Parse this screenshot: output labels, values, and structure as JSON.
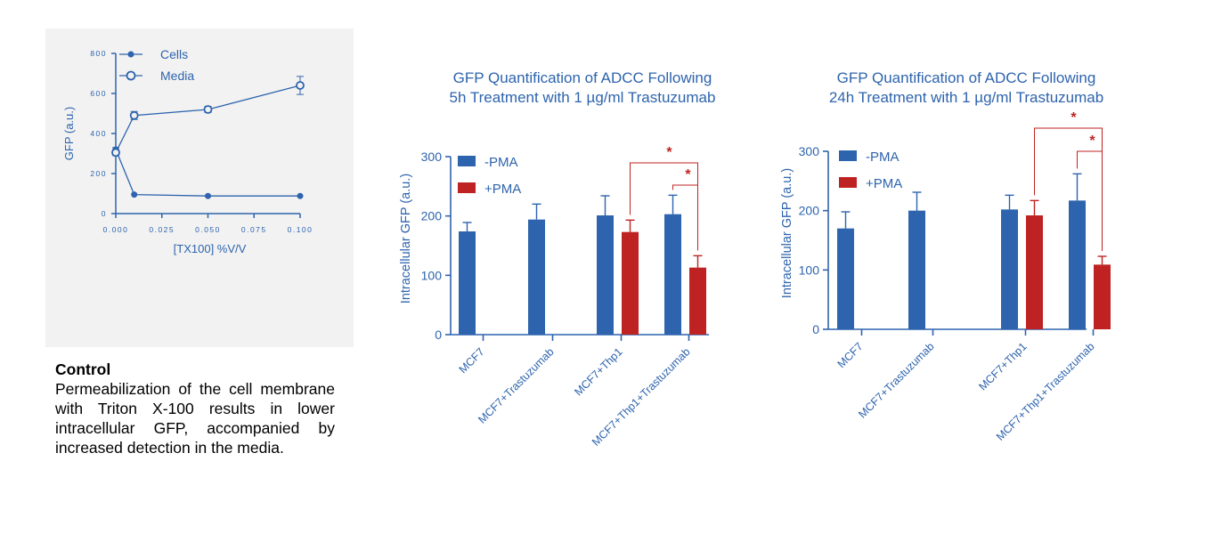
{
  "colors": {
    "blue": "#2e64ad",
    "red": "#bf2222",
    "panel": "#f2f2f2",
    "axis_text": "#2e64ad",
    "sig": "#bf2222"
  },
  "caption": {
    "title": "Control",
    "text": "Permeabilization of the cell membrane with Triton X-100 results in lower intracellular GFP, accompanied by increased detection in the media."
  },
  "chart_data": [
    {
      "type": "line",
      "title": "",
      "xlabel": "[TX100] %V/V",
      "ylabel": "GFP (a.u.)",
      "xlim": [
        0,
        0.1
      ],
      "ylim": [
        0,
        800
      ],
      "x_ticks": [
        "0.000",
        "0.025",
        "0.050",
        "0.075",
        "0.100"
      ],
      "y_ticks": [
        "0",
        "200",
        "400",
        "600",
        "800"
      ],
      "legend_position": "top",
      "series": [
        {
          "name": "Cells",
          "marker": "filled-circle",
          "x": [
            0,
            0.01,
            0.05,
            0.1
          ],
          "y": [
            320,
            95,
            88,
            88
          ],
          "err": [
            10,
            0,
            0,
            0
          ]
        },
        {
          "name": "Media",
          "marker": "open-circle",
          "x": [
            0,
            0.01,
            0.05,
            0.1
          ],
          "y": [
            305,
            490,
            520,
            640
          ],
          "err": [
            15,
            20,
            15,
            45
          ]
        }
      ]
    },
    {
      "type": "bar",
      "title": "GFP  Quantification of ADCC Following",
      "subtitle": "5h Treatment with 1 µg/ml  Trastuzumab",
      "ylabel": "Intracellular GFP (a.u.)",
      "xlabel": "",
      "ylim": [
        0,
        300
      ],
      "y_ticks": [
        "0",
        "100",
        "200",
        "300"
      ],
      "categories": [
        "MCF7",
        "MCF7+Trastuzumab",
        "MCF7+Thp1",
        "MCF7+Thp1+Trastuzumab"
      ],
      "legend_position": "top-left",
      "series": [
        {
          "name": "-PMA",
          "values": [
            174,
            194,
            201,
            203
          ],
          "errors": [
            15,
            26,
            33,
            32
          ]
        },
        {
          "name": "+PMA",
          "values": [
            null,
            null,
            173,
            113
          ],
          "errors": [
            null,
            null,
            20,
            20
          ]
        }
      ],
      "significance": [
        {
          "from": [
            2,
            1
          ],
          "to": [
            3,
            1
          ],
          "label": "*"
        },
        {
          "from": [
            3,
            0
          ],
          "to": [
            3,
            1
          ],
          "label": "*"
        }
      ]
    },
    {
      "type": "bar",
      "title": "GFP  Quantification of ADCC Following",
      "subtitle": "24h Treatment with 1 µg/ml  Trastuzumab",
      "ylabel": "Intracellular GFP (a.u.)",
      "xlabel": "",
      "ylim": [
        0,
        300
      ],
      "y_ticks": [
        "0",
        "100",
        "200",
        "300"
      ],
      "categories": [
        "MCF7",
        "MCF7+Trastuzumab",
        "MCF7+Thp1",
        "MCF7+Thp1+Trastuzumab"
      ],
      "legend_position": "top-left",
      "series": [
        {
          "name": "-PMA",
          "values": [
            170,
            200,
            202,
            217
          ],
          "errors": [
            28,
            31,
            24,
            45
          ]
        },
        {
          "name": "+PMA",
          "values": [
            null,
            null,
            192,
            109
          ],
          "errors": [
            null,
            null,
            25,
            14
          ]
        }
      ],
      "significance": [
        {
          "from": [
            2,
            1
          ],
          "to": [
            3,
            1
          ],
          "label": "*"
        },
        {
          "from": [
            3,
            0
          ],
          "to": [
            3,
            1
          ],
          "label": "*"
        }
      ]
    }
  ]
}
